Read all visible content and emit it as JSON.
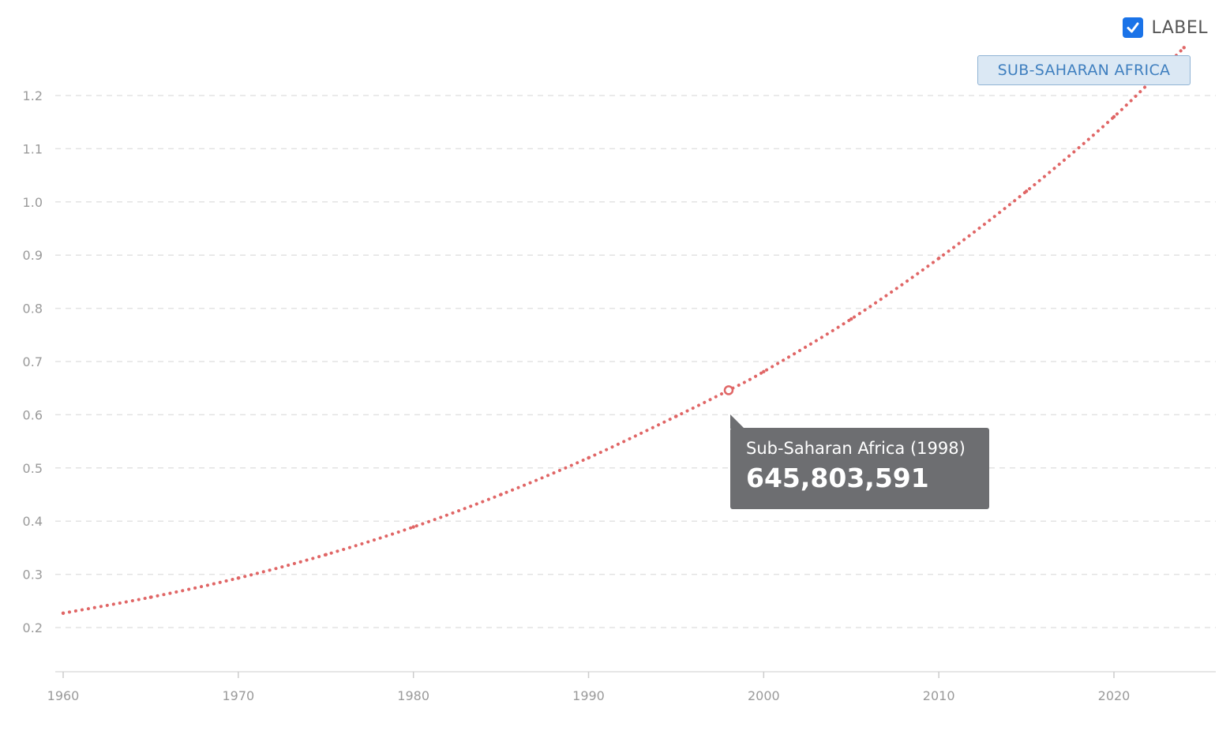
{
  "legend": {
    "toggle_label": "LABEL",
    "toggle_checked": true,
    "series_chip": "SUB-SAHARAN AFRICA"
  },
  "tooltip": {
    "title": "Sub-Saharan Africa (1998)",
    "value": "645,803,591"
  },
  "colors": {
    "series": "#e06666",
    "checkbox": "#1a73e8",
    "tooltip_bg": "#6d6e71",
    "chip_bg": "#dbe8f4",
    "chip_text": "#3f7fbf"
  },
  "chart_data": {
    "type": "line",
    "title": "",
    "xlabel": "",
    "ylabel": "",
    "xlim": [
      1960,
      2024
    ],
    "ylim": [
      0.12,
      1.3
    ],
    "x_ticks": [
      1960,
      1970,
      1980,
      1990,
      2000,
      2010,
      2020
    ],
    "y_ticks": [
      0.2,
      0.3,
      0.4,
      0.5,
      0.6,
      0.7,
      0.8,
      0.9,
      1.0,
      1.1,
      1.2
    ],
    "y_tick_labels": [
      "0.2",
      "0.3",
      "0.4",
      "0.5",
      "0.6",
      "0.7",
      "0.8",
      "0.9",
      "1.0",
      "1.1",
      "1.2"
    ],
    "grid": true,
    "line_style": "dotted",
    "series": [
      {
        "name": "Sub-Saharan Africa",
        "x": [
          1960,
          1965,
          1970,
          1975,
          1980,
          1985,
          1990,
          1995,
          1998,
          2000,
          2005,
          2010,
          2015,
          2020,
          2024
        ],
        "values": [
          0.227,
          0.257,
          0.293,
          0.337,
          0.389,
          0.45,
          0.519,
          0.597,
          0.646,
          0.681,
          0.78,
          0.894,
          1.02,
          1.16,
          1.29
        ]
      }
    ],
    "highlight": {
      "x": 1998,
      "y": 0.646
    }
  }
}
